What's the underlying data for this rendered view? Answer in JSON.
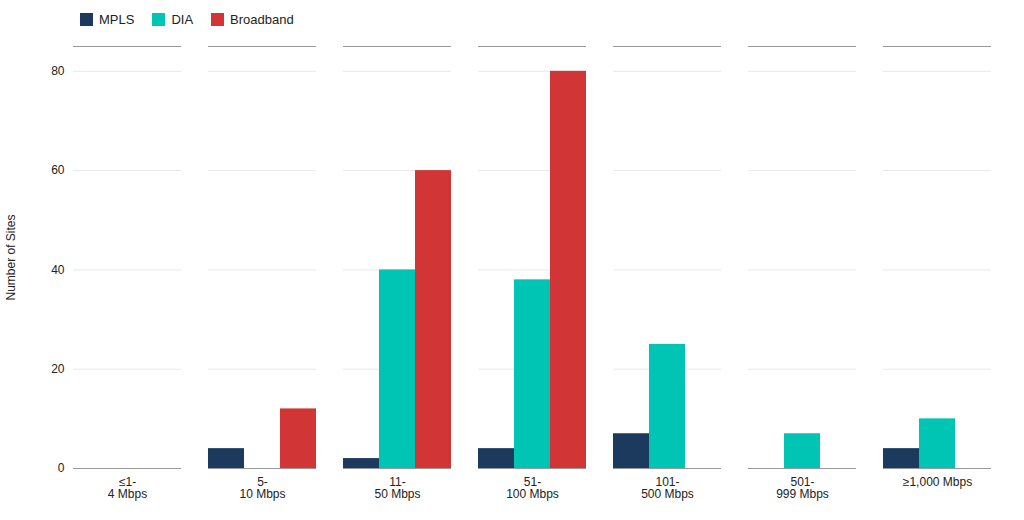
{
  "chart_data": {
    "type": "bar",
    "categories": [
      "≤1-\n4 Mbps",
      "5-\n10 Mbps",
      "11-\n50 Mbps",
      "51-\n100 Mbps",
      "101-\n500 Mbps",
      "501-\n999 Mbps",
      "≥1,000 Mbps"
    ],
    "series": [
      {
        "name": "MPLS",
        "color": "#1b3a5e",
        "values": [
          0,
          4,
          2,
          4,
          7,
          0,
          4
        ]
      },
      {
        "name": "DIA",
        "color": "#00c5b5",
        "values": [
          0,
          0,
          40,
          38,
          25,
          7,
          10
        ]
      },
      {
        "name": "Broadband",
        "color": "#d13535",
        "values": [
          0,
          12,
          60,
          80,
          0,
          0,
          0
        ]
      }
    ],
    "ylabel": "Number of Sites",
    "ylim": [
      0,
      85
    ],
    "yticks": [
      0,
      20,
      40,
      60,
      80
    ],
    "grid": true,
    "legend": "upper left"
  }
}
